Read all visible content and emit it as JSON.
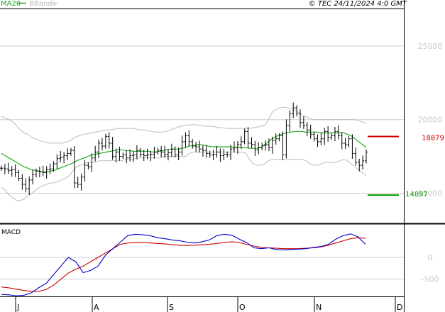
{
  "header": {
    "legend_ma": "MA20",
    "legend_bb": "BBands",
    "copyright": "© TEC 24/11/2024 4:0 GMT"
  },
  "colors": {
    "ma": "#22aa22",
    "bands": "#bbbbbb",
    "candles": "#000000",
    "resistance": "#cc0000",
    "support": "#009900",
    "macd": "#0000cc",
    "signal": "#cc0000",
    "grid": "#cfcfcf",
    "axis_text": "#c8c8c8"
  },
  "chart_data": [
    {
      "type": "candlestick",
      "title": "",
      "x_tick_labels": [
        "J",
        "A",
        "S",
        "O",
        "N",
        "D"
      ],
      "y_ticks": [
        {
          "value": 15000,
          "label": "15000"
        },
        {
          "value": 20000,
          "label": "20000"
        },
        {
          "value": 25000,
          "label": "25000"
        }
      ],
      "ylim": [
        13000,
        27500
      ],
      "bars_count": 106,
      "price_close": [
        16700,
        16650,
        16550,
        16600,
        16400,
        16000,
        15600,
        15300,
        15900,
        16250,
        16500,
        16450,
        16400,
        16600,
        16650,
        17000,
        17350,
        17450,
        17550,
        17700,
        17900,
        15700,
        15600,
        16100,
        16900,
        16800,
        17400,
        17800,
        18400,
        18200,
        18850,
        18400,
        17500,
        17800,
        17500,
        17600,
        17400,
        17550,
        17600,
        17900,
        17650,
        17550,
        17600,
        17650,
        17800,
        17900,
        17800,
        17650,
        17750,
        18000,
        17600,
        17800,
        18500,
        18900,
        18500,
        18200,
        18150,
        18000,
        17900,
        17700,
        17600,
        17650,
        17800,
        17550,
        17650,
        17600,
        18000,
        18100,
        18300,
        18500,
        19200,
        18400,
        18300,
        17950,
        18100,
        18250,
        18300,
        18100,
        18600,
        18700,
        18900,
        17600,
        19600,
        20400,
        20800,
        20400,
        19800,
        19600,
        19300,
        19000,
        18700,
        18500,
        18700,
        19200,
        18800,
        18900,
        19200,
        18900,
        18400,
        18300,
        18700,
        17700,
        17100,
        16900,
        17200,
        17800
      ],
      "ma20": [
        17700,
        17550,
        17400,
        17250,
        17100,
        16950,
        16800,
        16700,
        16600,
        16550,
        16500,
        16450,
        16450,
        16500,
        16550,
        16650,
        16750,
        16850,
        16950,
        17050,
        17200,
        17300,
        17400,
        17500,
        17600,
        17650,
        17700,
        17750,
        17800,
        17850,
        17900,
        17950,
        17950,
        17900,
        17900,
        17850,
        17850,
        17850,
        17850,
        17850,
        17800,
        17800,
        17850,
        17900,
        17950,
        18000,
        18000,
        18000,
        18050,
        18100,
        18200,
        18250,
        18300,
        18300,
        18250,
        18200,
        18150,
        18150,
        18150,
        18150,
        18150,
        18150,
        18100,
        18100,
        18100,
        18100,
        18050,
        18050,
        18050,
        18100,
        18300,
        18500,
        18700,
        18850,
        18950,
        19050,
        19100,
        19150,
        19200,
        19200,
        19200,
        19150,
        19150,
        19150,
        19150,
        19100,
        19100,
        19100,
        19100,
        19100,
        19100,
        19100,
        19000,
        18900,
        18700,
        18500,
        18300,
        18100
      ],
      "bb_upper": [
        20200,
        20100,
        20000,
        19850,
        19600,
        19300,
        19100,
        19000,
        18800,
        18700,
        18600,
        18500,
        18450,
        18400,
        18400,
        18400,
        18400,
        18450,
        18550,
        18700,
        18850,
        18950,
        19000,
        19050,
        19100,
        19150,
        19200,
        19250,
        19300,
        19300,
        19350,
        19400,
        19400,
        19400,
        19400,
        19400,
        19350,
        19300,
        19300,
        19250,
        19200,
        19150,
        19150,
        19150,
        19200,
        19300,
        19400,
        19500,
        19550,
        19600,
        19650,
        19650,
        19650,
        19600,
        19550,
        19550,
        19550,
        19500,
        19450,
        19450,
        19400,
        19400,
        19400,
        19400,
        19400,
        19400,
        19400,
        19450,
        19500,
        19550,
        19600,
        20000,
        20500,
        20700,
        20800,
        20850,
        20800,
        20750,
        20650,
        20500,
        20300,
        20200,
        20100,
        20000,
        20000,
        20000,
        20000,
        20000,
        20000,
        20000,
        20000,
        20000,
        20000,
        20000,
        20000,
        19950,
        19850,
        19750
      ],
      "bb_lower": [
        15400,
        15200,
        14900,
        14700,
        14500,
        14500,
        14600,
        14800,
        15000,
        15200,
        15400,
        15500,
        15600,
        15700,
        15700,
        15800,
        15900,
        16000,
        16200,
        16500,
        16800,
        16900,
        17000,
        17100,
        17100,
        17100,
        17200,
        17200,
        17200,
        17200,
        17200,
        17200,
        17200,
        17300,
        17300,
        17300,
        17400,
        17400,
        17400,
        17400,
        17400,
        17400,
        17400,
        17500,
        17500,
        17500,
        17500,
        17500,
        17500,
        17500,
        17700,
        17800,
        17800,
        17800,
        17800,
        17800,
        17800,
        17800,
        17800,
        17800,
        17800,
        17800,
        17800,
        17800,
        17800,
        17700,
        17300,
        17000,
        16900,
        16900,
        17000,
        17200,
        17300,
        17300,
        17300,
        17300,
        17300,
        17300,
        17300,
        17300,
        17300,
        17200,
        17000,
        16900,
        16900,
        17000,
        17100,
        17100,
        17100,
        17100,
        17200,
        17300,
        17200,
        17000,
        16800,
        16600,
        16400,
        16200
      ],
      "annotations": [
        {
          "kind": "resistance",
          "value": 18879,
          "label": "18879"
        },
        {
          "kind": "support",
          "value": 14897,
          "label": "14897"
        }
      ]
    },
    {
      "type": "line",
      "title": "MACD",
      "y_ticks": [
        {
          "value": 0,
          "label": "0"
        },
        {
          "value": -500,
          "label": "-500"
        }
      ],
      "ylim": [
        -880,
        700
      ],
      "series": [
        {
          "name": "",
          "values": [
            -850,
            -860,
            -880,
            -870,
            -820,
            -700,
            -600,
            -400,
            -200,
            0,
            -100,
            -350,
            -300,
            -200,
            50,
            200,
            350,
            500,
            530,
            520,
            500,
            450,
            430,
            400,
            380,
            350,
            330,
            360,
            400,
            500,
            530,
            510,
            420,
            340,
            220,
            200,
            220,
            180,
            170,
            180,
            190,
            200,
            230,
            250,
            300,
            420,
            500,
            540,
            470,
            300
          ]
        },
        {
          "name": "",
          "values": [
            -680,
            -700,
            -730,
            -760,
            -780,
            -780,
            -740,
            -640,
            -500,
            -360,
            -270,
            -200,
            -100,
            0,
            100,
            200,
            300,
            330,
            340,
            340,
            330,
            320,
            310,
            290,
            280,
            275,
            280,
            290,
            300,
            320,
            340,
            360,
            340,
            300,
            260,
            230,
            220,
            210,
            200,
            200,
            200,
            210,
            220,
            240,
            280,
            330,
            380,
            430,
            450,
            440
          ]
        }
      ]
    }
  ]
}
